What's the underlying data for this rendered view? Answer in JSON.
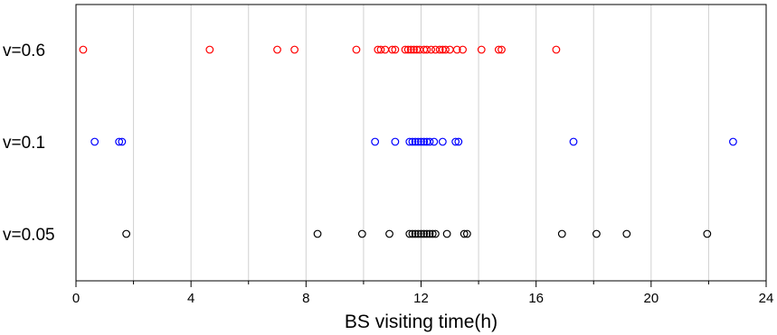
{
  "chart_data": {
    "type": "scatter",
    "title": "",
    "xlabel": "BS visiting time(h)",
    "ylabel": "",
    "xlim": [
      0,
      24
    ],
    "xticks": [
      0,
      4,
      8,
      12,
      16,
      20,
      24
    ],
    "grid": "vertical",
    "marker": "open-circle",
    "series": [
      {
        "name": "v=0.6",
        "color": "#ff0000",
        "values": [
          0.25,
          4.65,
          7.0,
          7.6,
          9.75,
          10.5,
          10.6,
          10.75,
          11.0,
          11.1,
          11.45,
          11.55,
          11.65,
          11.75,
          11.85,
          11.95,
          12.1,
          12.2,
          12.35,
          12.5,
          12.65,
          12.75,
          12.85,
          13.0,
          13.25,
          13.45,
          14.1,
          14.7,
          14.8,
          16.7
        ]
      },
      {
        "name": "v=0.1",
        "color": "#0000ff",
        "values": [
          0.65,
          1.5,
          1.6,
          10.4,
          11.1,
          11.6,
          11.7,
          11.8,
          11.9,
          12.0,
          12.1,
          12.2,
          12.3,
          12.45,
          12.75,
          13.2,
          13.3,
          17.3,
          22.85
        ]
      },
      {
        "name": "v=0.05",
        "color": "#000000",
        "values": [
          1.75,
          8.4,
          9.95,
          10.9,
          11.6,
          11.7,
          11.8,
          11.9,
          12.0,
          12.1,
          12.2,
          12.3,
          12.4,
          12.5,
          12.9,
          13.5,
          13.6,
          16.9,
          18.1,
          19.15,
          21.95
        ]
      }
    ]
  }
}
